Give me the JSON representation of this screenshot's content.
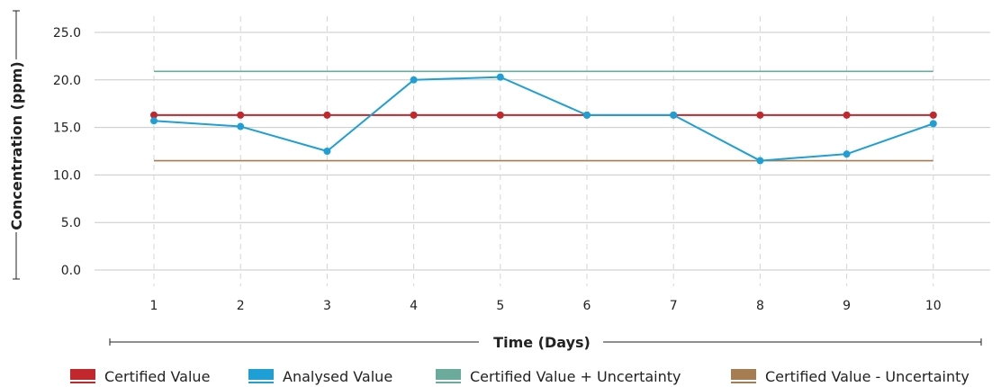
{
  "chart_data": {
    "type": "line",
    "title": "",
    "xlabel": "Time (Days)",
    "ylabel": "Concentration (ppm)",
    "x": [
      1,
      2,
      3,
      4,
      5,
      6,
      7,
      8,
      9,
      10
    ],
    "x_tick_labels": [
      "1",
      "2",
      "3",
      "4",
      "5",
      "6",
      "7",
      "8",
      "9",
      "10"
    ],
    "y_tick_labels": [
      "0.0",
      "5.0",
      "10.0",
      "15.0",
      "20.0",
      "25.0"
    ],
    "ylim": [
      0,
      25
    ],
    "grid": {
      "horizontal": true,
      "vertical_dashed": true
    },
    "legend_position": "bottom",
    "series": [
      {
        "name": "Certified Value",
        "color": "#c1272d",
        "markers": true,
        "values": [
          16.3,
          16.3,
          16.3,
          16.3,
          16.3,
          16.3,
          16.3,
          16.3,
          16.3,
          16.3
        ]
      },
      {
        "name": "Analysed Value",
        "color": "#1e9fd6",
        "markers": true,
        "values": [
          15.7,
          15.1,
          12.5,
          20.0,
          20.3,
          16.3,
          16.3,
          11.5,
          12.2,
          15.4
        ]
      },
      {
        "name": "Certified Value + Uncertainty",
        "color": "#6aab9c",
        "markers": false,
        "values": [
          20.9,
          20.9,
          20.9,
          20.9,
          20.9,
          20.9,
          20.9,
          20.9,
          20.9,
          20.9
        ]
      },
      {
        "name": "Certified Value - Uncertainty",
        "color": "#a67c52",
        "markers": false,
        "values": [
          11.5,
          11.5,
          11.5,
          11.5,
          11.5,
          11.5,
          11.5,
          11.5,
          11.5,
          11.5
        ]
      }
    ]
  }
}
